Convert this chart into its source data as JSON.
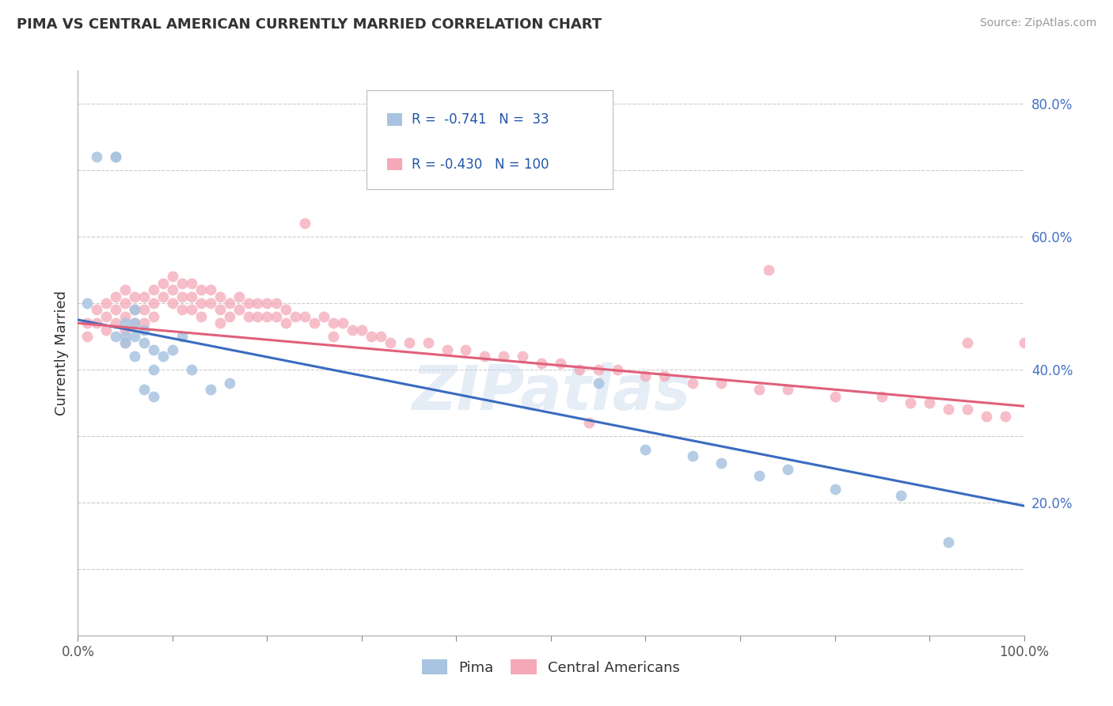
{
  "title": "PIMA VS CENTRAL AMERICAN CURRENTLY MARRIED CORRELATION CHART",
  "source": "Source: ZipAtlas.com",
  "ylabel": "Currently Married",
  "xlim": [
    0.0,
    1.0
  ],
  "ylim": [
    0.0,
    0.85
  ],
  "pima_R": "-0.741",
  "pima_N": "33",
  "ca_R": "-0.430",
  "ca_N": "100",
  "pima_color": "#a8c4e0",
  "ca_color": "#f4a8b8",
  "pima_line_color": "#3a6bbf",
  "ca_line_color": "#e0607a",
  "legend_label_pima": "Pima",
  "legend_label_ca": "Central Americans",
  "watermark": "ZIPatlas",
  "pima_line_x0": 0.0,
  "pima_line_y0": 0.475,
  "pima_line_x1": 1.0,
  "pima_line_y1": 0.195,
  "ca_line_x0": 0.0,
  "ca_line_y0": 0.47,
  "ca_line_x1": 1.0,
  "ca_line_y1": 0.345,
  "pima_x": [
    0.01,
    0.02,
    0.04,
    0.04,
    0.04,
    0.05,
    0.05,
    0.05,
    0.06,
    0.06,
    0.06,
    0.06,
    0.07,
    0.07,
    0.07,
    0.08,
    0.08,
    0.08,
    0.09,
    0.1,
    0.11,
    0.12,
    0.14,
    0.16,
    0.55,
    0.6,
    0.65,
    0.68,
    0.72,
    0.75,
    0.8,
    0.87,
    0.92
  ],
  "pima_y": [
    0.5,
    0.72,
    0.72,
    0.72,
    0.45,
    0.47,
    0.45,
    0.44,
    0.49,
    0.47,
    0.45,
    0.42,
    0.46,
    0.44,
    0.37,
    0.43,
    0.4,
    0.36,
    0.42,
    0.43,
    0.45,
    0.4,
    0.37,
    0.38,
    0.38,
    0.28,
    0.27,
    0.26,
    0.24,
    0.25,
    0.22,
    0.21,
    0.14
  ],
  "ca_x": [
    0.01,
    0.01,
    0.02,
    0.02,
    0.03,
    0.03,
    0.03,
    0.04,
    0.04,
    0.04,
    0.05,
    0.05,
    0.05,
    0.05,
    0.05,
    0.06,
    0.06,
    0.06,
    0.07,
    0.07,
    0.07,
    0.08,
    0.08,
    0.08,
    0.09,
    0.09,
    0.1,
    0.1,
    0.1,
    0.11,
    0.11,
    0.11,
    0.12,
    0.12,
    0.12,
    0.13,
    0.13,
    0.13,
    0.14,
    0.14,
    0.15,
    0.15,
    0.15,
    0.16,
    0.16,
    0.17,
    0.17,
    0.18,
    0.18,
    0.19,
    0.19,
    0.2,
    0.2,
    0.21,
    0.21,
    0.22,
    0.22,
    0.23,
    0.24,
    0.25,
    0.26,
    0.27,
    0.27,
    0.28,
    0.29,
    0.3,
    0.31,
    0.32,
    0.33,
    0.35,
    0.37,
    0.39,
    0.41,
    0.43,
    0.45,
    0.47,
    0.49,
    0.51,
    0.53,
    0.55,
    0.57,
    0.6,
    0.62,
    0.65,
    0.68,
    0.72,
    0.75,
    0.8,
    0.85,
    0.88,
    0.9,
    0.92,
    0.94,
    0.96,
    0.98,
    1.0,
    0.24,
    0.54,
    0.73,
    0.94
  ],
  "ca_y": [
    0.47,
    0.45,
    0.49,
    0.47,
    0.5,
    0.48,
    0.46,
    0.51,
    0.49,
    0.47,
    0.52,
    0.5,
    0.48,
    0.46,
    0.44,
    0.51,
    0.49,
    0.47,
    0.51,
    0.49,
    0.47,
    0.52,
    0.5,
    0.48,
    0.53,
    0.51,
    0.54,
    0.52,
    0.5,
    0.53,
    0.51,
    0.49,
    0.53,
    0.51,
    0.49,
    0.52,
    0.5,
    0.48,
    0.52,
    0.5,
    0.51,
    0.49,
    0.47,
    0.5,
    0.48,
    0.51,
    0.49,
    0.5,
    0.48,
    0.5,
    0.48,
    0.5,
    0.48,
    0.5,
    0.48,
    0.49,
    0.47,
    0.48,
    0.48,
    0.47,
    0.48,
    0.47,
    0.45,
    0.47,
    0.46,
    0.46,
    0.45,
    0.45,
    0.44,
    0.44,
    0.44,
    0.43,
    0.43,
    0.42,
    0.42,
    0.42,
    0.41,
    0.41,
    0.4,
    0.4,
    0.4,
    0.39,
    0.39,
    0.38,
    0.38,
    0.37,
    0.37,
    0.36,
    0.36,
    0.35,
    0.35,
    0.34,
    0.34,
    0.33,
    0.33,
    0.44,
    0.62,
    0.32,
    0.55,
    0.44
  ]
}
